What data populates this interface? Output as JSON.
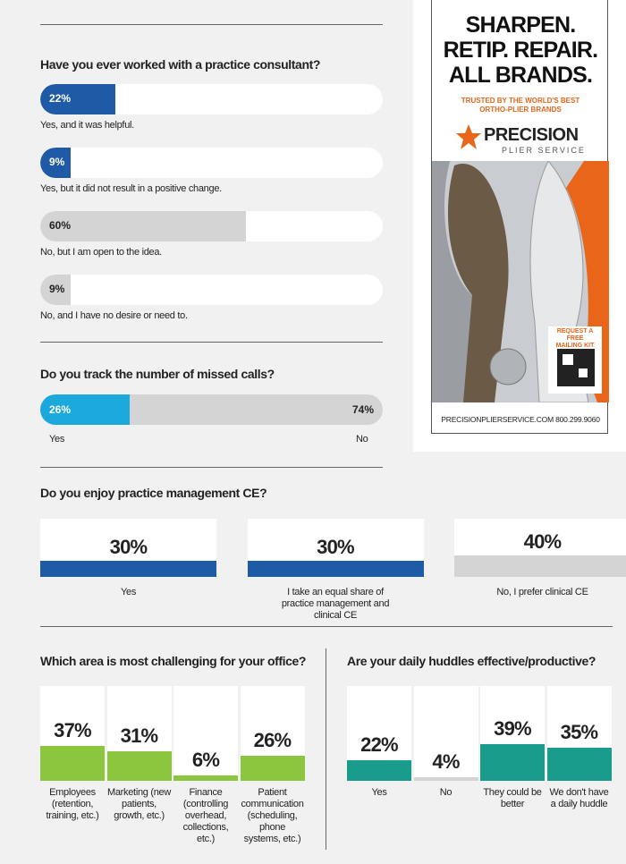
{
  "chart_data": [
    {
      "type": "progress",
      "title": "Have you ever worked with a practice consultant?",
      "categories": [
        "Yes, and it was helpful.",
        "Yes, but it did not result in a positive change.",
        "No, but I am open to the idea.",
        "No, and I have no desire or need to."
      ],
      "values": [
        22,
        9,
        60,
        9
      ],
      "value_labels": [
        "22%",
        "9%",
        "60%",
        "9%"
      ],
      "colors": [
        "#1f5aa6",
        "#1f5aa6",
        "#d4d4d4",
        "#d4d4d4"
      ],
      "xlim": [
        0,
        100
      ]
    },
    {
      "type": "split",
      "title": "Do you track the number of missed calls?",
      "categories": [
        "Yes",
        "No"
      ],
      "values": [
        26,
        74
      ],
      "value_labels": [
        "26%",
        "74%"
      ],
      "colors": [
        "#1ba9dc",
        "#d4d4d4"
      ],
      "xlim": [
        0,
        100
      ]
    },
    {
      "type": "card",
      "title": "Do you enjoy practice management CE?",
      "categories": [
        "Yes",
        "I take an equal share of practice management and clinical CE",
        "No, I prefer clinical CE"
      ],
      "values": [
        30,
        30,
        40
      ],
      "value_labels": [
        "30%",
        "30%",
        "40%"
      ],
      "colors": [
        "#1f5aa6",
        "#1f5aa6",
        "#d4d4d4"
      ],
      "ylim": [
        0,
        100
      ]
    },
    {
      "type": "column",
      "title": "Which area is most challenging for your office?",
      "categories": [
        "Employees (retention, training, etc.)",
        "Marketing (new patients, growth, etc.)",
        "Finance (controlling overhead, collections, etc.)",
        "Patient communication (scheduling, phone systems, etc.)"
      ],
      "values": [
        37,
        31,
        6,
        26
      ],
      "value_labels": [
        "37%",
        "31%",
        "6%",
        "26%"
      ],
      "color": "#8cc63f",
      "ylim": [
        0,
        100
      ]
    },
    {
      "type": "column",
      "title": "Are your daily huddles effective/productive?",
      "categories": [
        "Yes",
        "No",
        "They could be better",
        "We don't have a daily huddle"
      ],
      "values": [
        22,
        4,
        39,
        35
      ],
      "value_labels": [
        "22%",
        "4%",
        "39%",
        "35%"
      ],
      "colors": [
        "#1a9c8c",
        "#d4d4d4",
        "#1a9c8c",
        "#1a9c8c"
      ],
      "ylim": [
        0,
        100
      ]
    }
  ],
  "ad": {
    "headline": [
      "SHARPEN.",
      "RETIP. REPAIR.",
      "ALL BRANDS."
    ],
    "tagline": [
      "TRUSTED BY THE WORLD'S BEST",
      "ORTHO-PLIER BRANDS"
    ],
    "brand": "PRECISION",
    "brand_sub": "PLIER SERVICE",
    "qr_text": [
      "REQUEST A FREE",
      "MAILING KIT"
    ],
    "footer": "PRECISIONPLIERSERVICE.COM 800.299.9060"
  }
}
